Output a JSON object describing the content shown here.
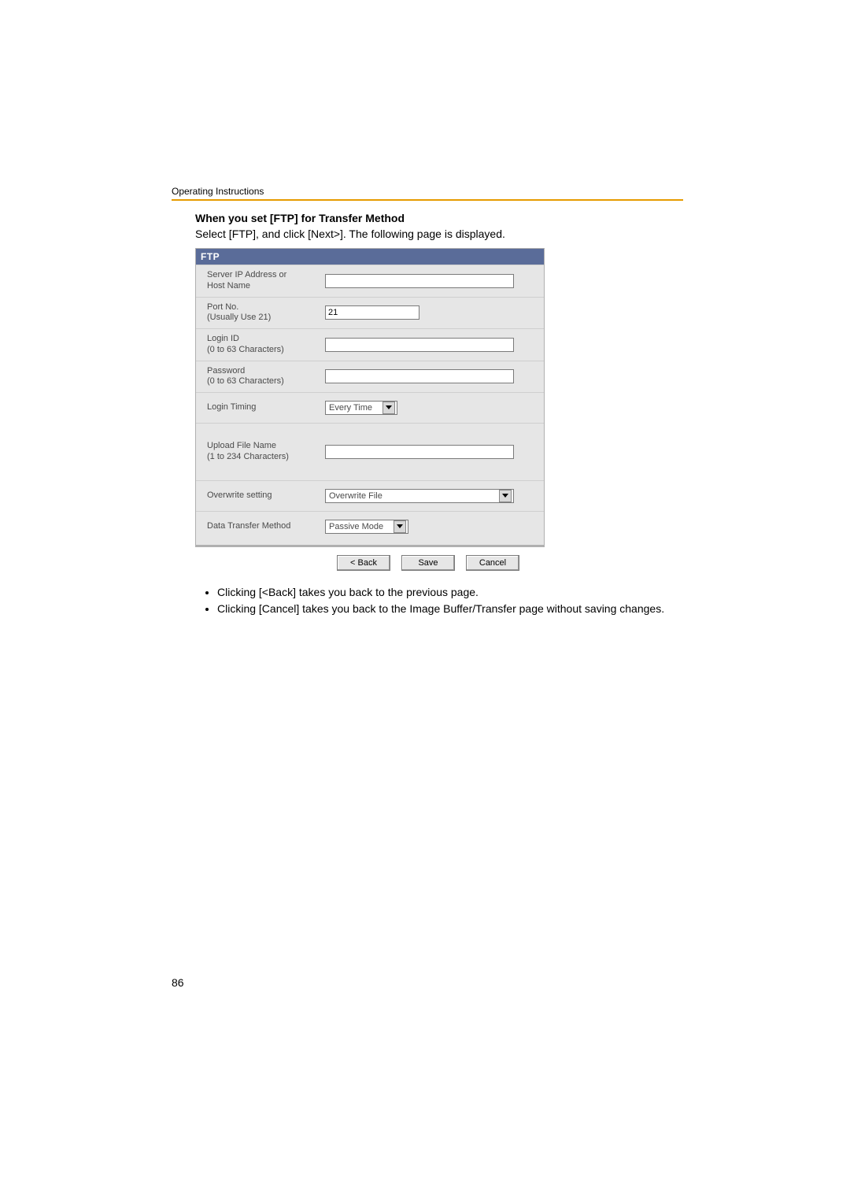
{
  "header": {
    "running_title": "Operating Instructions"
  },
  "title": "When you set [FTP] for Transfer Method",
  "subtitle": "Select [FTP], and click [Next>]. The following page is displayed.",
  "panel": {
    "heading": "FTP",
    "rows": {
      "server": {
        "label_l1": "Server IP Address or",
        "label_l2": "Host Name",
        "value": ""
      },
      "port": {
        "label_l1": "Port No.",
        "label_l2": "(Usually Use 21)",
        "value": "21"
      },
      "login": {
        "label_l1": "Login ID",
        "label_l2": "(0 to 63 Characters)",
        "value": ""
      },
      "password": {
        "label_l1": "Password",
        "label_l2": "(0 to 63 Characters)",
        "value": ""
      },
      "login_timing": {
        "label": "Login Timing",
        "selected": "Every Time"
      },
      "upload": {
        "label_l1": "Upload File Name",
        "label_l2": "(1 to 234 Characters)",
        "value": ""
      },
      "overwrite": {
        "label": "Overwrite setting",
        "selected": "Overwrite File"
      },
      "data_transfer": {
        "label": "Data Transfer Method",
        "selected": "Passive Mode"
      }
    },
    "buttons": {
      "back": "< Back",
      "save": "Save",
      "cancel": "Cancel"
    }
  },
  "notes": {
    "items": [
      "Clicking [<Back] takes you back to the previous page.",
      "Clicking [Cancel] takes you back to the Image Buffer/Transfer page without saving changes."
    ]
  },
  "page_number": "86"
}
